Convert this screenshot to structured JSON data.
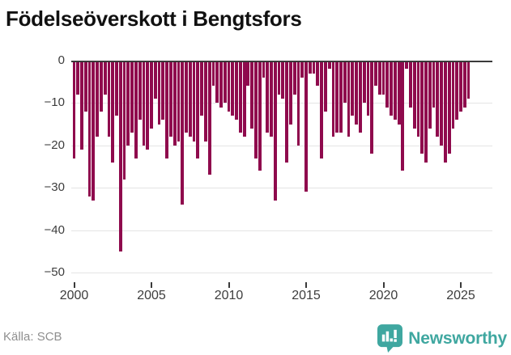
{
  "title": "Födelseöverskott i Bengtsfors",
  "footer": {
    "source_label": "Källa: SCB",
    "brand_name": "Newsworthy"
  },
  "colors": {
    "bar": "#8f0a4d",
    "brand_teal": "#3fa7a0",
    "grid": "#e4e4e4",
    "axis": "#3a3a3a"
  },
  "chart_data": {
    "type": "bar",
    "title": "Födelseöverskott i Bengtsfors",
    "xlabel": "",
    "ylabel": "",
    "x_start": "2000 Q1",
    "x_frequency": "quarterly",
    "ylim": [
      -50,
      0
    ],
    "grid": true,
    "legend": false,
    "yticks": [
      {
        "label": "0",
        "value": 0
      },
      {
        "label": "−10",
        "value": -10
      },
      {
        "label": "−20",
        "value": -20
      },
      {
        "label": "−30",
        "value": -30
      },
      {
        "label": "−40",
        "value": -40
      },
      {
        "label": "−50",
        "value": -50
      }
    ],
    "xticks": [
      {
        "label": "2000",
        "bar_index": 0
      },
      {
        "label": "2005",
        "bar_index": 20
      },
      {
        "label": "2010",
        "bar_index": 40
      },
      {
        "label": "2015",
        "bar_index": 60
      },
      {
        "label": "2020",
        "bar_index": 80
      },
      {
        "label": "2025",
        "bar_index": 100
      }
    ],
    "values": [
      -23,
      -8,
      -21,
      -12,
      -32,
      -33,
      -18,
      -12,
      -8,
      -18,
      -24,
      -13,
      -45,
      -28,
      -20,
      -17,
      -23,
      -14,
      -20,
      -21,
      -16,
      -9,
      -15,
      -14,
      -23,
      -18,
      -20,
      -19,
      -34,
      -17,
      -18,
      -19,
      -23,
      -13,
      -19,
      -27,
      -6,
      -10,
      -11,
      -10,
      -12,
      -13,
      -14,
      -17,
      -18,
      -6,
      -16,
      -23,
      -26,
      -4,
      -17,
      -18,
      -33,
      -8,
      -9,
      -24,
      -15,
      -8,
      -20,
      -4,
      -31,
      -3,
      -3,
      -6,
      -23,
      -12,
      -2,
      -18,
      -17,
      -17,
      -10,
      -18,
      -13,
      -15,
      -17,
      -10,
      -13,
      -22,
      -6,
      -8,
      -8,
      -11,
      -13,
      -14,
      -15,
      -26,
      -2,
      -11,
      -16,
      -18,
      -22,
      -24,
      -16,
      -11,
      -18,
      -20,
      -24,
      -22,
      -16,
      -14,
      -12,
      -11,
      -9
    ]
  }
}
